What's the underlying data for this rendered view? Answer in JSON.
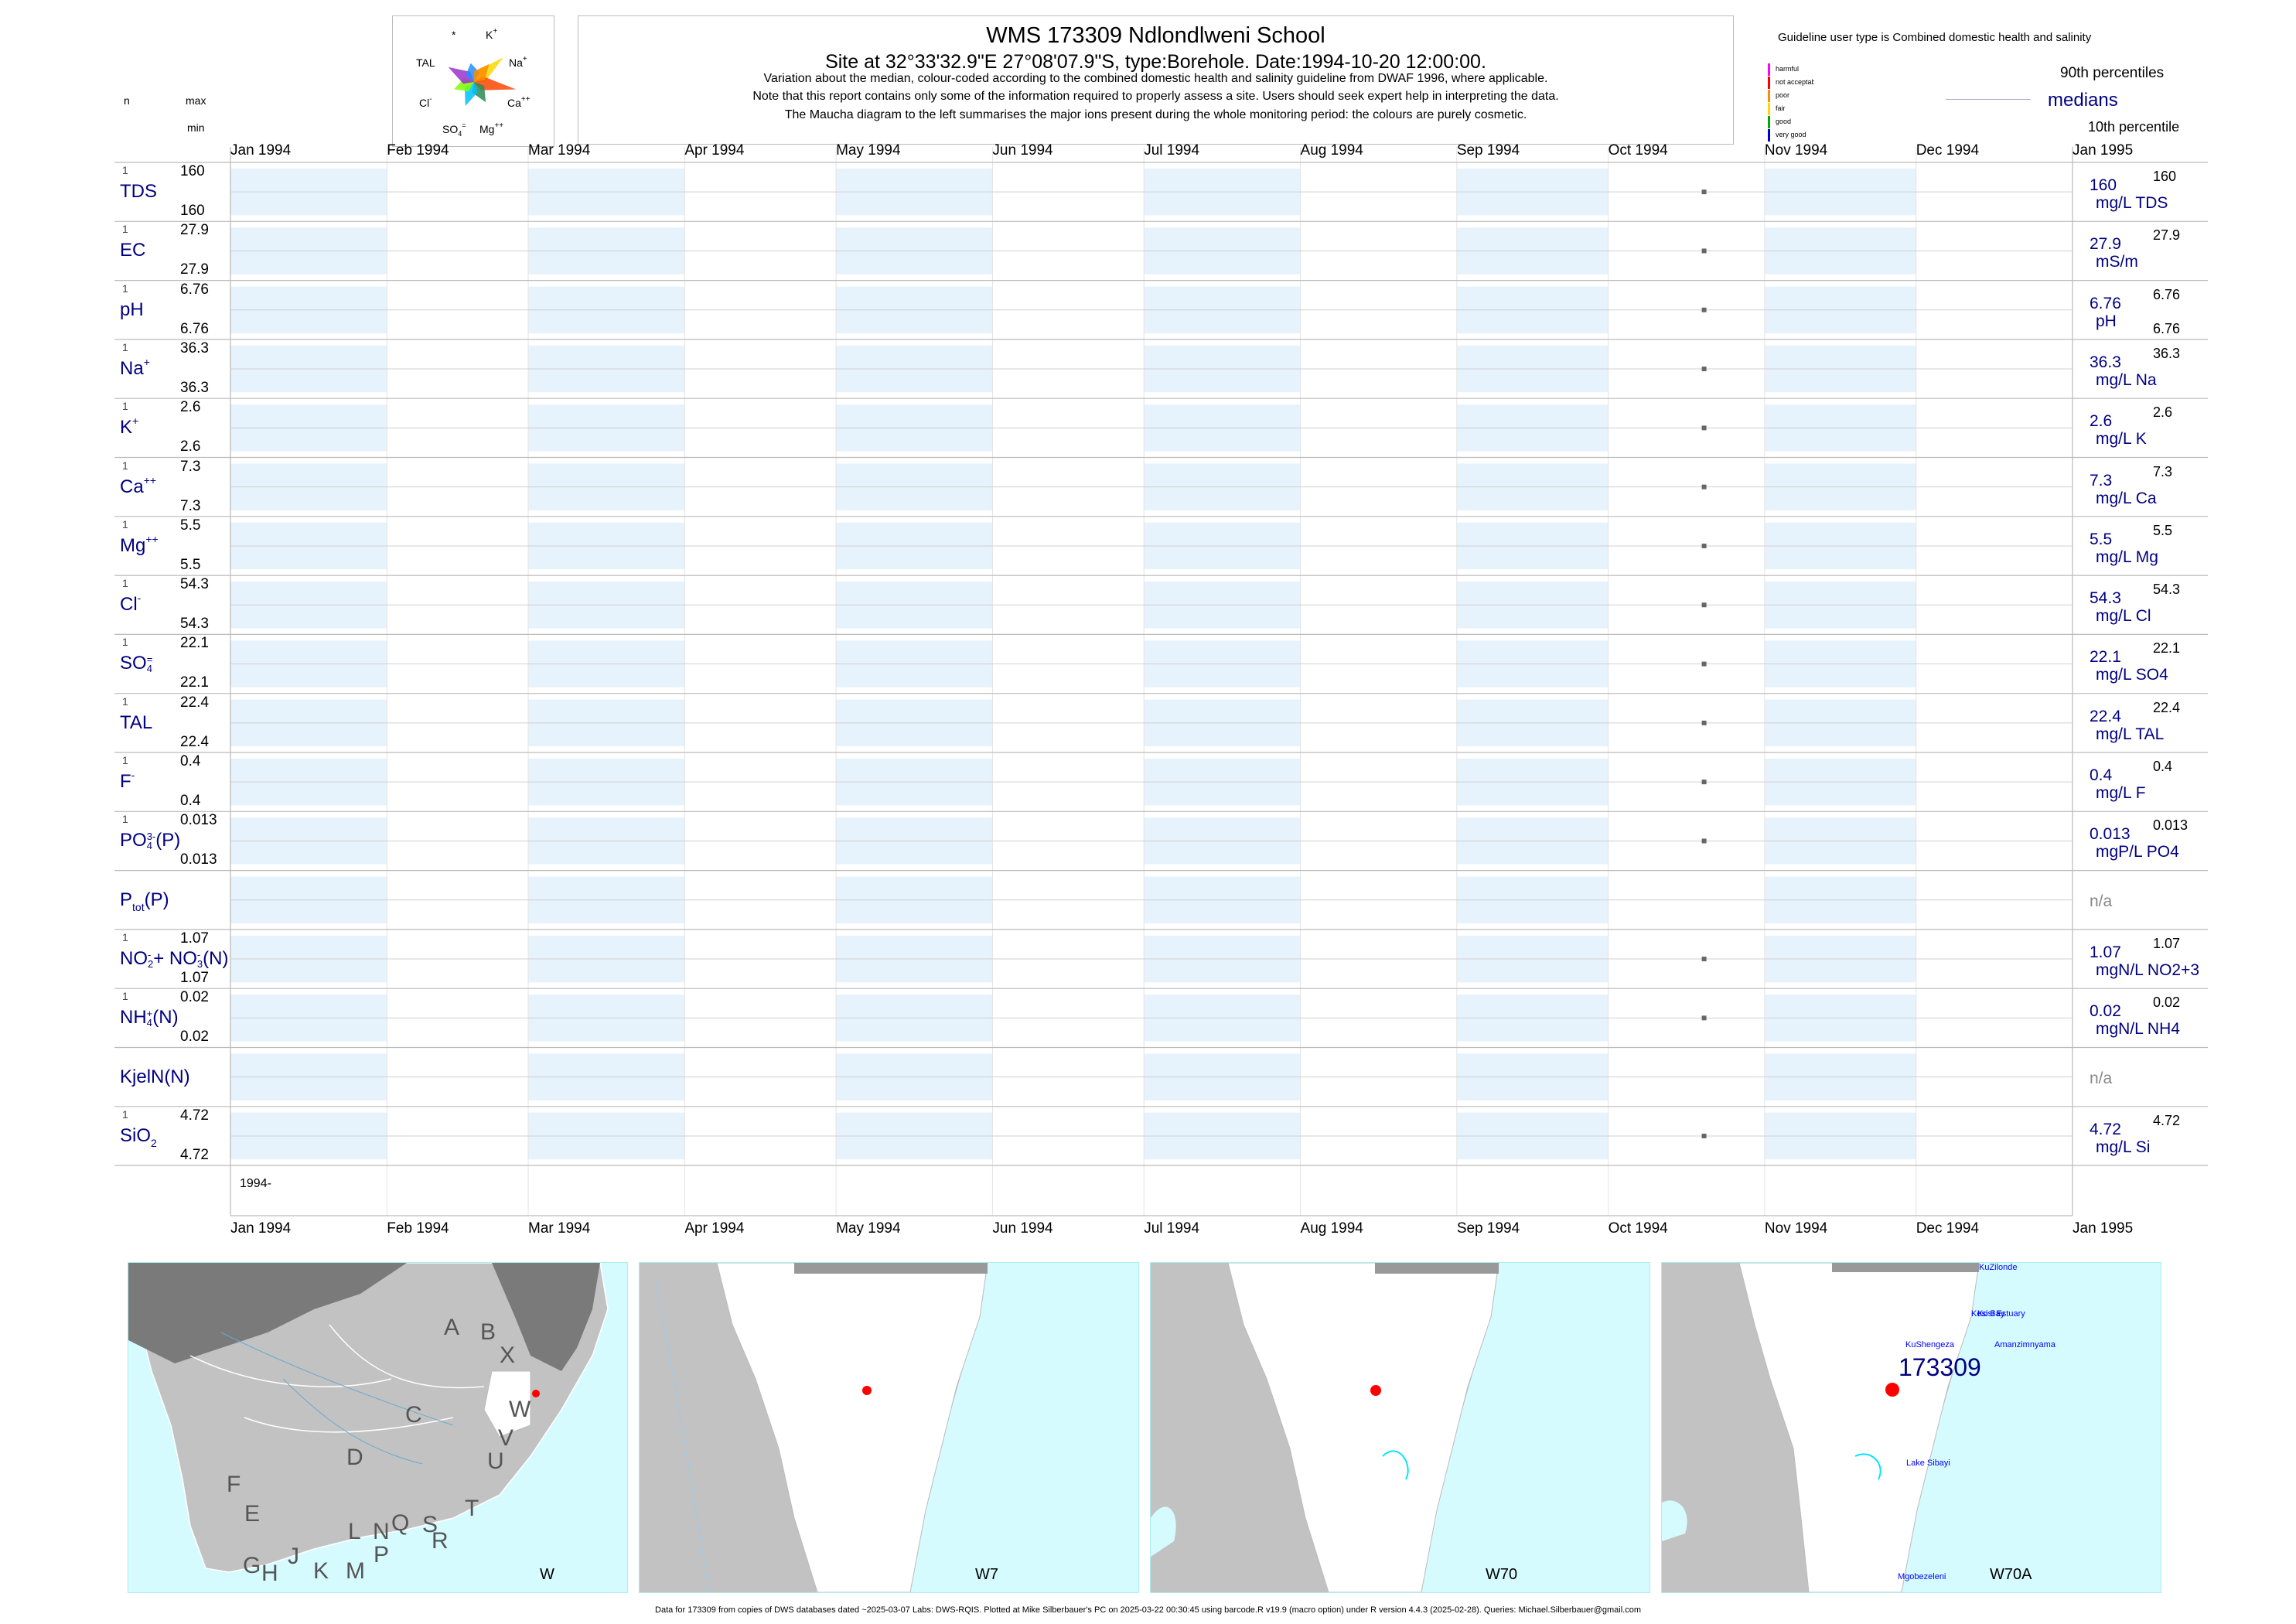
{
  "header": {
    "title": "WMS 173309  Ndlondlweni School",
    "subtitle": "Site at 32°33'32.9\"E 27°08'07.9\"S, type:Borehole. Date:1994-10-20 12:00:00.",
    "note1": "Variation about the median,  colour-coded according to the combined domestic health and salinity guideline from DWAF 1996, where applicable.",
    "note2": "Note that this report contains only some of the information required to properly assess a site. Users should seek expert help in interpreting the data.",
    "note3": "The Maucha diagram to the left summarises the major ions present during the whole monitoring period: the colours are purely cosmetic."
  },
  "maucha": {
    "labels": {
      "star": "*",
      "k": "K",
      "k_sup": "+",
      "na": "Na",
      "na_sup": "+",
      "tal": "TAL",
      "cl": "Cl",
      "cl_sup": "-",
      "ca": "Ca",
      "ca_sup": "++",
      "so4": "SO",
      "so4_sub": "4",
      "so4_sup": "=",
      "mg": "Mg",
      "mg_sup": "++"
    },
    "colors": [
      "#ffd700",
      "#ff4500",
      "#2e8b57",
      "#00bfff",
      "#7fff00",
      "#9932cc",
      "#1e90ff",
      "#ff8c00"
    ]
  },
  "corner": {
    "n": "n",
    "max": "max",
    "min": "min"
  },
  "legend": {
    "title": "Guideline user type is Combined domestic health and salinity",
    "classes": [
      {
        "label": "harmful",
        "color": "#ff00ff"
      },
      {
        "label": "not acceptable",
        "color": "#ff0000"
      },
      {
        "label": "poor",
        "color": "#ff8c00"
      },
      {
        "label": "fair",
        "color": "#ffd700"
      },
      {
        "label": "good",
        "color": "#00aa00"
      },
      {
        "label": "very good",
        "color": "#0000cd"
      }
    ],
    "p90": "90th percentiles",
    "median": "medians",
    "p10": "10th percentile"
  },
  "axis": {
    "months": [
      "Jan 1994",
      "Feb 1994",
      "Mar 1994",
      "Apr 1994",
      "May 1994",
      "Jun 1994",
      "Jul 1994",
      "Aug 1994",
      "Sep 1994",
      "Oct 1994",
      "Nov 1994",
      "Dec 1994",
      "Jan 1995"
    ],
    "year_label": "1994-"
  },
  "colors": {
    "band": "#e6f2fc",
    "point": "#666666",
    "param": "#000080",
    "grid": "#cccccc"
  },
  "chart_data": {
    "type": "scatter",
    "x_range": [
      "1994-01-01",
      "1995-01-01"
    ],
    "sample_date": "1994-10-20",
    "series": [
      {
        "label": "TDS",
        "sup": "",
        "sub": "",
        "n": "1",
        "max": "160",
        "min": "160",
        "median": "160",
        "p90": "160",
        "p10": "",
        "unit": "mg/L TDS",
        "value": 160
      },
      {
        "label": "EC",
        "sup": "",
        "sub": "",
        "n": "1",
        "max": "27.9",
        "min": "27.9",
        "median": "27.9",
        "p90": "27.9",
        "p10": "",
        "unit": "mS/m",
        "value": 27.9
      },
      {
        "label": "pH",
        "sup": "",
        "sub": "",
        "n": "1",
        "max": "6.76",
        "min": "6.76",
        "median": "6.76",
        "p90": "6.76",
        "p10": "6.76",
        "unit": "pH",
        "value": 6.76
      },
      {
        "label": "Na",
        "sup": "+",
        "sub": "",
        "n": "1",
        "max": "36.3",
        "min": "36.3",
        "median": "36.3",
        "p90": "36.3",
        "p10": "",
        "unit": "mg/L Na",
        "value": 36.3
      },
      {
        "label": "K",
        "sup": "+",
        "sub": "",
        "n": "1",
        "max": "2.6",
        "min": "2.6",
        "median": "2.6",
        "p90": "2.6",
        "p10": "",
        "unit": "mg/L K",
        "value": 2.6
      },
      {
        "label": "Ca",
        "sup": "++",
        "sub": "",
        "n": "1",
        "max": "7.3",
        "min": "7.3",
        "median": "7.3",
        "p90": "7.3",
        "p10": "",
        "unit": "mg/L Ca",
        "value": 7.3
      },
      {
        "label": "Mg",
        "sup": "++",
        "sub": "",
        "n": "1",
        "max": "5.5",
        "min": "5.5",
        "median": "5.5",
        "p90": "5.5",
        "p10": "",
        "unit": "mg/L Mg",
        "value": 5.5
      },
      {
        "label": "Cl",
        "sup": "-",
        "sub": "",
        "n": "1",
        "max": "54.3",
        "min": "54.3",
        "median": "54.3",
        "p90": "54.3",
        "p10": "",
        "unit": "mg/L Cl",
        "value": 54.3
      },
      {
        "label": "SO",
        "sup": "=",
        "sub": "4",
        "n": "1",
        "max": "22.1",
        "min": "22.1",
        "median": "22.1",
        "p90": "22.1",
        "p10": "",
        "unit": "mg/L SO4",
        "value": 22.1
      },
      {
        "label": "TAL",
        "sup": "",
        "sub": "",
        "n": "1",
        "max": "22.4",
        "min": "22.4",
        "median": "22.4",
        "p90": "22.4",
        "p10": "",
        "unit": "mg/L TAL",
        "value": 22.4
      },
      {
        "label": "F",
        "sup": "-",
        "sub": "",
        "n": "1",
        "max": "0.4",
        "min": "0.4",
        "median": "0.4",
        "p90": "0.4",
        "p10": "",
        "unit": "mg/L F",
        "value": 0.4
      },
      {
        "label": "PO",
        "sup": "3-",
        "sub": "4",
        "suffix": "(P)",
        "n": "1",
        "max": "0.013",
        "min": "0.013",
        "median": "0.013",
        "p90": "0.013",
        "p10": "",
        "unit": "mgP/L PO4",
        "value": 0.013
      },
      {
        "label": "P",
        "sup": "",
        "sub": "tot",
        "suffix": "(P)",
        "n": "",
        "max": "",
        "min": "",
        "median": "n/a",
        "p90": "",
        "p10": "",
        "unit": "",
        "value": null
      },
      {
        "label": "NO",
        "sup": "-",
        "sub": "2",
        "suffix": "+ NO",
        "sup2": "-",
        "sub2": "3",
        "suffix2": "(N)",
        "n": "1",
        "max": "1.07",
        "min": "1.07",
        "median": "1.07",
        "p90": "1.07",
        "p10": "",
        "unit": "mgN/L NO2+3",
        "value": 1.07
      },
      {
        "label": "NH",
        "sup": "+",
        "sub": "4",
        "suffix": "(N)",
        "n": "1",
        "max": "0.02",
        "min": "0.02",
        "median": "0.02",
        "p90": "0.02",
        "p10": "",
        "unit": "mgN/L NH4",
        "value": 0.02
      },
      {
        "label": "KjelN(N)",
        "sup": "",
        "sub": "",
        "n": "",
        "max": "",
        "min": "",
        "median": "n/a",
        "p90": "",
        "p10": "",
        "unit": "",
        "value": null
      },
      {
        "label": "SiO",
        "sup": "",
        "sub": "2",
        "n": "1",
        "max": "4.72",
        "min": "4.72",
        "median": "4.72",
        "p90": "4.72",
        "p10": "",
        "unit": "mg/L Si",
        "value": 4.72
      }
    ]
  },
  "maps": [
    {
      "label": "W",
      "letters": [
        "A",
        "B",
        "X",
        "W",
        "C",
        "V",
        "U",
        "D",
        "F",
        "T",
        "E",
        "L",
        "N",
        "Q",
        "S",
        "R",
        "G",
        "H",
        "J",
        "K",
        "M",
        "P"
      ]
    },
    {
      "label": "W7"
    },
    {
      "label": "W70"
    },
    {
      "label": "W70A",
      "site": "173309",
      "places": [
        "KuZilonde",
        "Kosi Estuary",
        "Kosi Bay",
        "KuShengeza",
        "Amanzimnyama",
        "Lake Sibayi",
        "Mgobezeleni"
      ]
    }
  ],
  "footer": "Data for 173309 from copies of DWS databases dated ~2025-03-07 Labs: DWS-RQIS. Plotted at Mike Silberbauer's PC on 2025-03-22 00:30:45 using barcode.R v19.9 (macro option) under R version 4.4.3 (2025-02-28). Queries: Michael.Silberbauer@gmail.com"
}
